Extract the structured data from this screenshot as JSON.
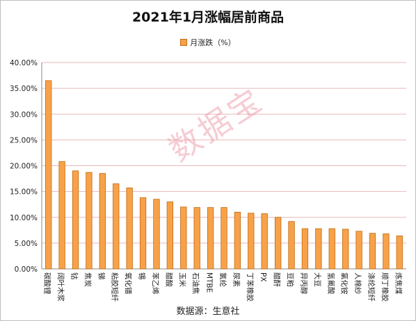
{
  "chart_data": {
    "type": "bar",
    "title": "2021年1月涨幅居前商品",
    "legend": [
      "月涨跌（%）"
    ],
    "legend_position": "top",
    "grid": true,
    "ylim": [
      0,
      40
    ],
    "yticks": [
      "0.00%",
      "5.00%",
      "10.00%",
      "15.00%",
      "20.00%",
      "25.00%",
      "30.00%",
      "35.00%",
      "40.00%"
    ],
    "categories": [
      "碳酸锂",
      "阔叶木浆",
      "钴",
      "焦炭",
      "锑",
      "粘胶短纤",
      "氧化镨",
      "锡",
      "苯乙烯",
      "醋酸",
      "玉米",
      "石油焦",
      "MTBE",
      "氯纶",
      "尿素",
      "丁苯橡胶",
      "PX",
      "醋酐",
      "豆粕",
      "异丙醇",
      "大豆",
      "氢氟酸",
      "氯化铵",
      "人棉纱",
      "涤纶短纤",
      "顺丁橡胶",
      "炼焦煤"
    ],
    "series": [
      {
        "name": "月涨跌（%）",
        "values": [
          36.5,
          20.8,
          19.0,
          18.7,
          18.5,
          16.5,
          15.7,
          13.8,
          13.5,
          13.0,
          12.0,
          11.9,
          11.9,
          11.9,
          11.0,
          10.8,
          10.7,
          10.0,
          9.2,
          7.8,
          7.8,
          7.8,
          7.7,
          7.3,
          6.9,
          6.8,
          6.4
        ]
      }
    ],
    "source": "数据源：生意社",
    "watermark": "数据宝",
    "colors": {
      "bar": "#f7a24a",
      "bar_edge": "#c06a10",
      "grid": "#e8b8b8",
      "axis": "#888888"
    }
  }
}
